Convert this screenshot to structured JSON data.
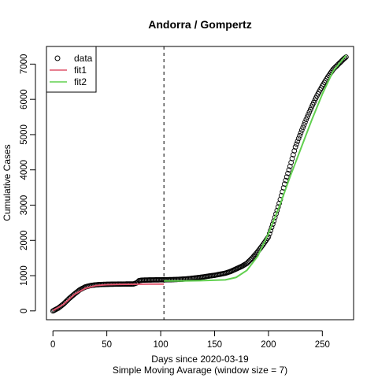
{
  "chart_data": {
    "type": "scatter",
    "title": "Andorra / Gompertz",
    "xlabel": "Days since 2020-03-19",
    "xlabel2": "Simple Moving Avarage (window size = 7)",
    "ylabel": "Cumulative Cases",
    "xlim": [
      -6,
      279
    ],
    "ylim": [
      -250,
      7500
    ],
    "x_ticks": [
      0,
      50,
      100,
      150,
      200,
      250
    ],
    "y_ticks": [
      0,
      1000,
      2000,
      3000,
      4000,
      5000,
      6000,
      7000
    ],
    "vline_x": 103,
    "legend_position": "top-left",
    "grid": false,
    "series": [
      {
        "name": "data",
        "kind": "points",
        "marker": "open-circle",
        "color": "#000000",
        "x": [
          0,
          5,
          10,
          15,
          20,
          25,
          30,
          35,
          40,
          45,
          50,
          55,
          60,
          65,
          70,
          75,
          78,
          80,
          82,
          85,
          90,
          95,
          100,
          105,
          110,
          115,
          120,
          125,
          130,
          135,
          140,
          145,
          150,
          155,
          160,
          165,
          170,
          175,
          180,
          185,
          190,
          195,
          200,
          205,
          210,
          215,
          220,
          225,
          230,
          235,
          240,
          245,
          250,
          255,
          260,
          265,
          270,
          272
        ],
        "y": [
          0,
          80,
          200,
          350,
          480,
          600,
          680,
          720,
          740,
          750,
          755,
          758,
          760,
          762,
          763,
          765,
          800,
          860,
          870,
          875,
          878,
          880,
          882,
          884,
          887,
          892,
          900,
          912,
          928,
          945,
          965,
          990,
          1010,
          1040,
          1070,
          1120,
          1190,
          1260,
          1350,
          1500,
          1680,
          1880,
          2100,
          2550,
          3050,
          3600,
          4100,
          4650,
          5050,
          5430,
          5780,
          6100,
          6380,
          6630,
          6850,
          7000,
          7150,
          7200
        ]
      },
      {
        "name": "fit1",
        "kind": "line",
        "color": "#DF536B",
        "x": [
          0,
          10,
          20,
          30,
          40,
          50,
          60,
          70,
          80,
          90,
          100,
          103
        ],
        "y": [
          10,
          190,
          470,
          640,
          720,
          745,
          752,
          756,
          758,
          760,
          761,
          761
        ]
      },
      {
        "name": "fit2",
        "kind": "line",
        "color": "#61D04F",
        "x": [
          103,
          120,
          140,
          160,
          170,
          180,
          190,
          200,
          210,
          220,
          230,
          240,
          250,
          260,
          272
        ],
        "y": [
          850,
          850,
          860,
          880,
          950,
          1150,
          1550,
          2200,
          2950,
          3800,
          4600,
          5400,
          6150,
          6800,
          7250
        ]
      }
    ]
  }
}
